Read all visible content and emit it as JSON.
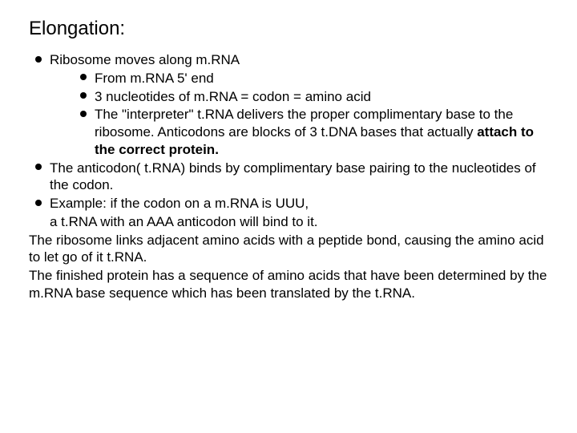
{
  "title_fontsize": 24,
  "body_fontsize": 17,
  "text_color": "#000000",
  "background_color": "#ffffff",
  "bullet_color": "#000000",
  "title": "Elongation:",
  "b1": "Ribosome moves along m.RNA",
  "b1a": "From m.RNA 5' end",
  "b1b": "3 nucleotides of m.RNA  = codon = amino acid",
  "b1c": "The \"interpreter\"  t.RNA delivers the proper complimentary base to the ribosome. Anticodons are blocks of 3 t.DNA bases that actually ",
  "b1c_bold": "attach to the correct protein.",
  "b2": "The anticodon( t.RNA) binds by complimentary base pairing to the nucleotides of the codon.",
  "b3": "Example: if the codon on a m.RNA is UUU,",
  "l_cont": "a t.RNA with an AAA anticodon will bind to it.",
  "p1": "The ribosome links adjacent amino acids with a peptide bond, causing the amino acid to let go of it t.RNA.",
  "p2": "The finished protein has a sequence of amino acids that have been determined by the m.RNA base sequence which has been translated by the t.RNA."
}
